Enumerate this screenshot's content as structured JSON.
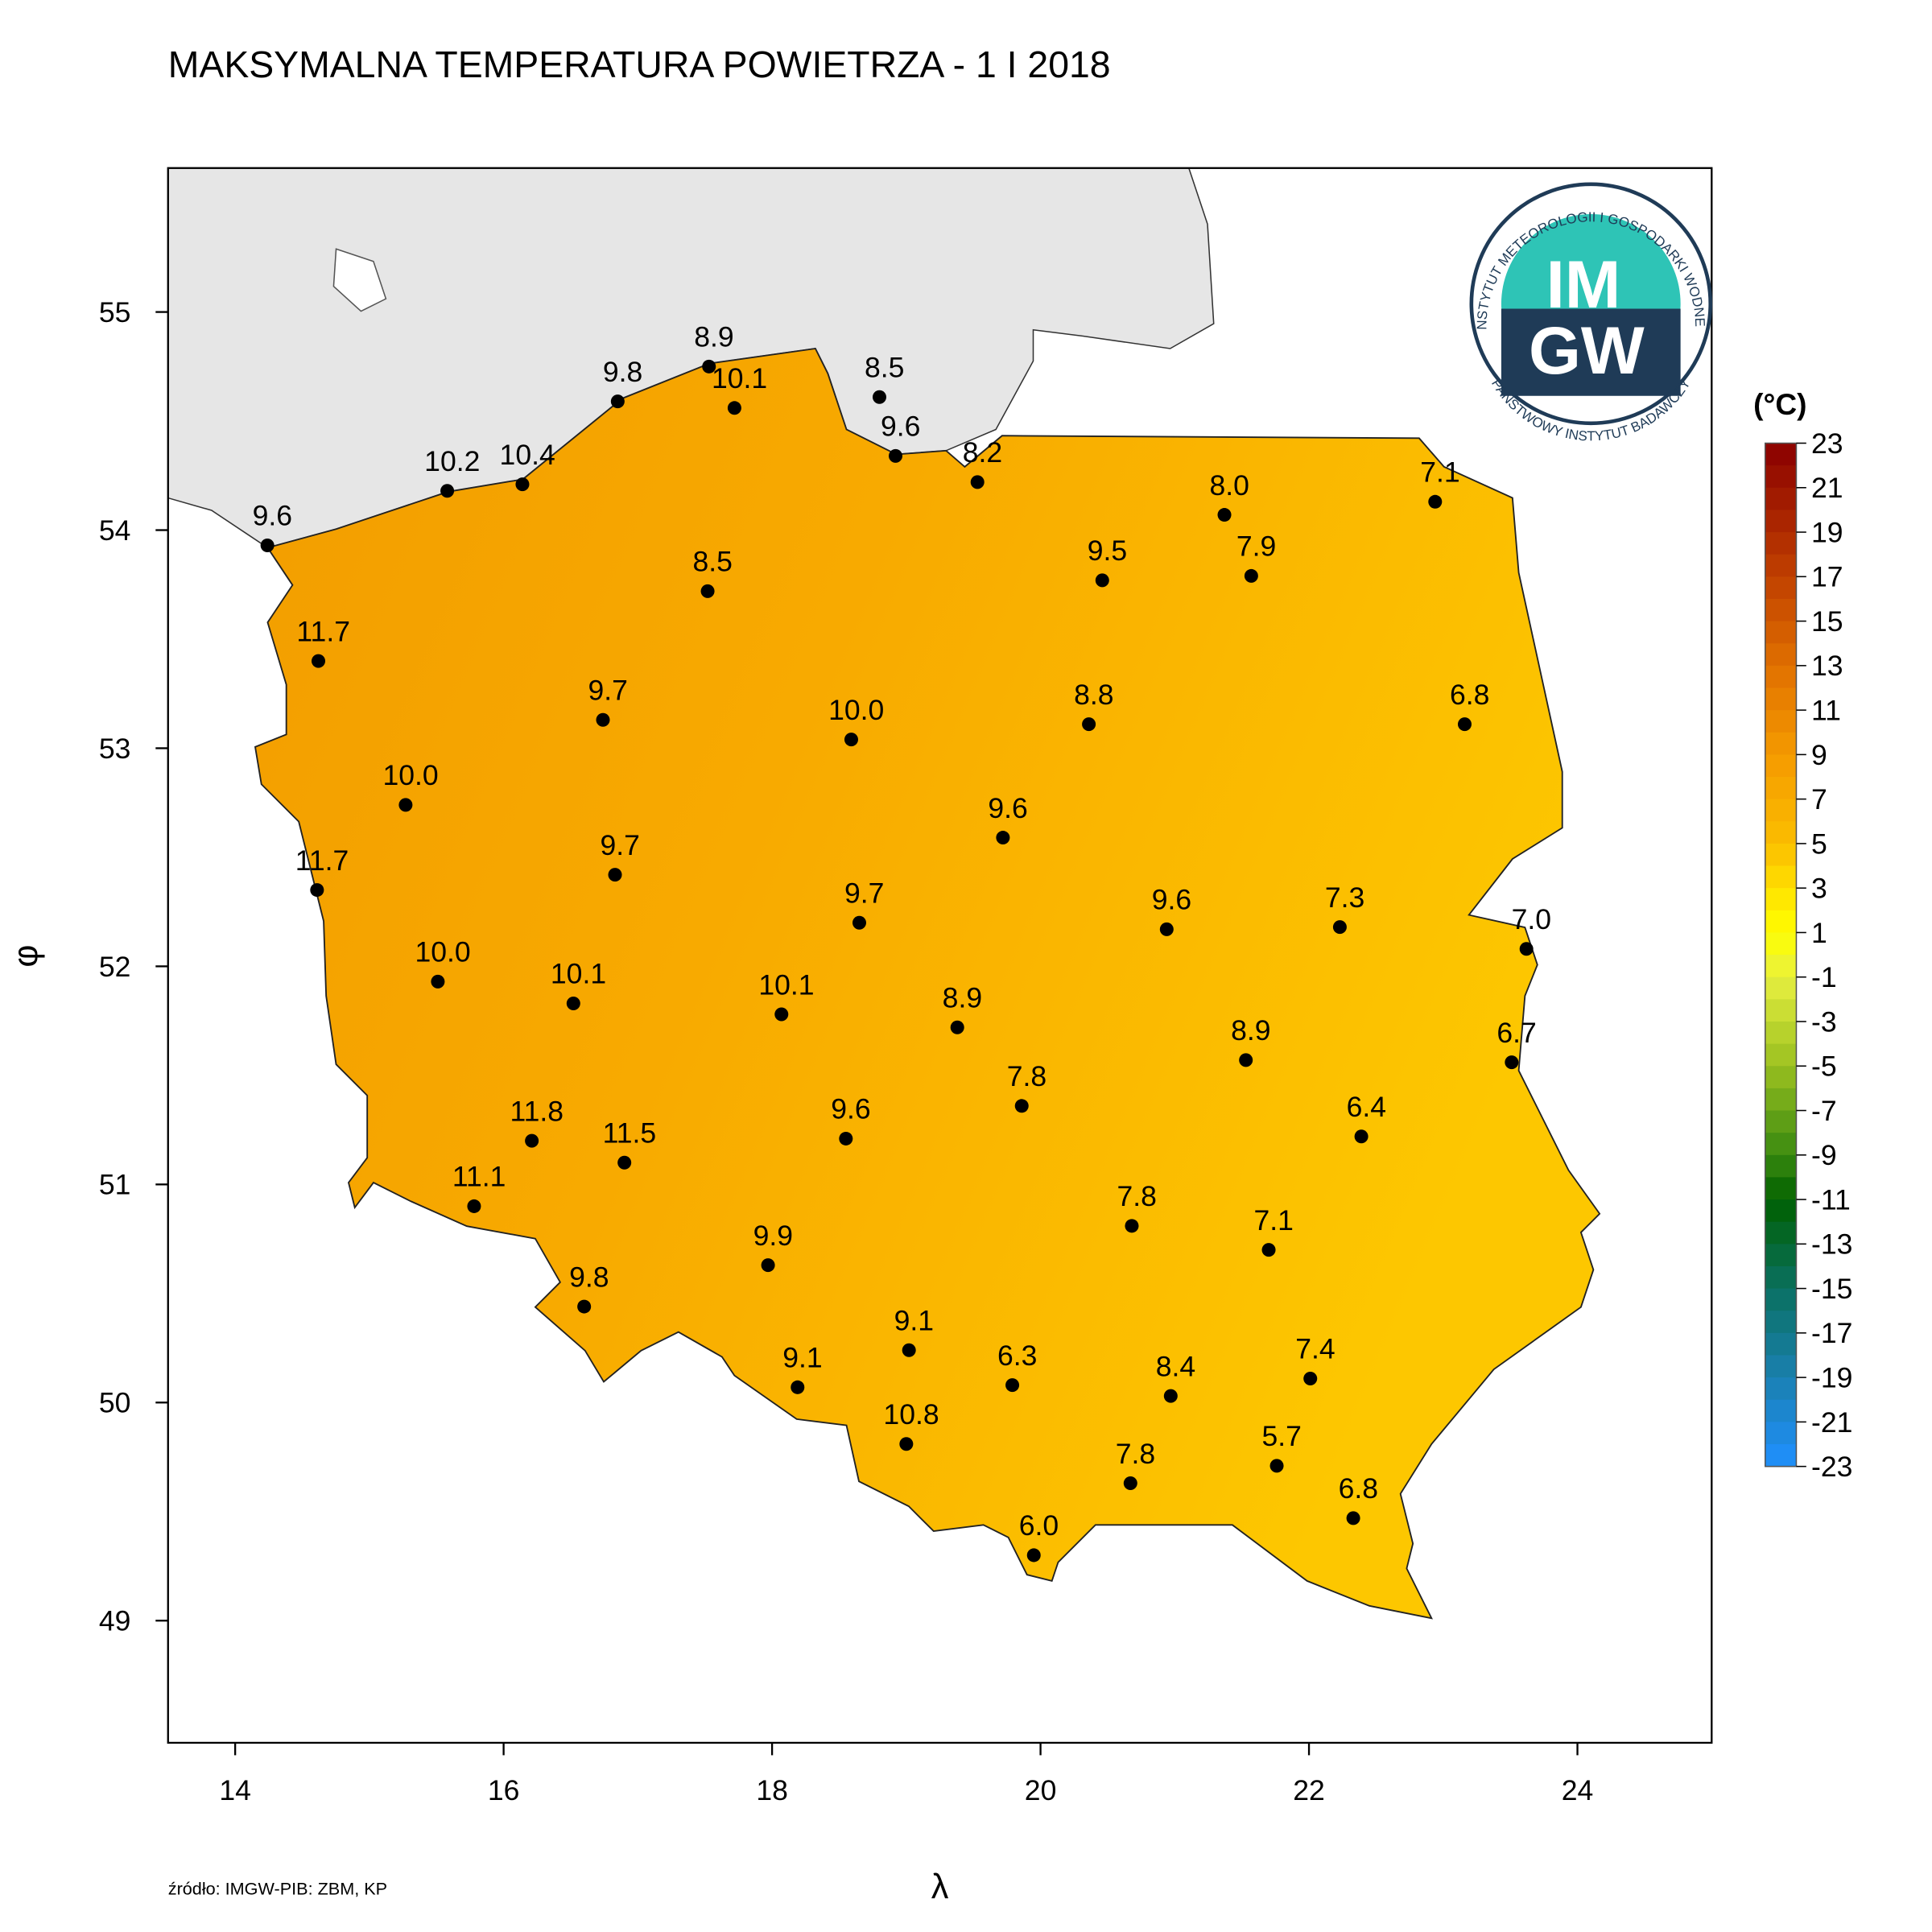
{
  "chart_data": {
    "type": "station-map",
    "title": "MAKSYMALNA TEMPERATURA POWIETRZA - 1 I 2018",
    "x_label": "λ",
    "y_label": "φ",
    "source": "źródło: IMGW-PIB: ZBM, KP",
    "logo": {
      "top": "IM",
      "bottom": "GW",
      "ring_top": "INSTYTUT METEOROLOGII I GOSPODARKI WODNEJ",
      "ring_bottom": "PAŃSTWOWY INSTYTUT BADAWCZY"
    },
    "xlim": [
      13.5,
      25.0
    ],
    "ylim": [
      48.44,
      55.66
    ],
    "xticks": [
      14,
      16,
      18,
      20,
      22,
      24
    ],
    "yticks": [
      49,
      50,
      51,
      52,
      53,
      54,
      55
    ],
    "stations": [
      {
        "lon": 14.24,
        "lat": 53.93,
        "value": 9.6
      },
      {
        "lon": 15.58,
        "lat": 54.18,
        "value": 10.2
      },
      {
        "lon": 16.14,
        "lat": 54.21,
        "value": 10.4
      },
      {
        "lon": 16.85,
        "lat": 54.59,
        "value": 9.8
      },
      {
        "lon": 17.53,
        "lat": 54.75,
        "value": 8.9
      },
      {
        "lon": 17.72,
        "lat": 54.56,
        "value": 10.1
      },
      {
        "lon": 18.8,
        "lat": 54.61,
        "value": 8.5
      },
      {
        "lon": 18.92,
        "lat": 54.34,
        "value": 9.6
      },
      {
        "lon": 19.53,
        "lat": 54.22,
        "value": 8.2
      },
      {
        "lon": 21.37,
        "lat": 54.07,
        "value": 8,
        "label": "8.0"
      },
      {
        "lon": 22.94,
        "lat": 54.13,
        "value": 7.1
      },
      {
        "lon": 17.52,
        "lat": 53.72,
        "value": 8.5
      },
      {
        "lon": 20.46,
        "lat": 53.77,
        "value": 9.5
      },
      {
        "lon": 21.57,
        "lat": 53.79,
        "value": 7.9
      },
      {
        "lon": 14.62,
        "lat": 53.4,
        "value": 11.7
      },
      {
        "lon": 16.74,
        "lat": 53.13,
        "value": 9.7
      },
      {
        "lon": 18.59,
        "lat": 53.04,
        "value": 10,
        "label": "10.0"
      },
      {
        "lon": 20.36,
        "lat": 53.11,
        "value": 8.8
      },
      {
        "lon": 23.16,
        "lat": 53.11,
        "value": 6.8
      },
      {
        "lon": 15.27,
        "lat": 52.74,
        "value": 10,
        "label": "10.0"
      },
      {
        "lon": 19.72,
        "lat": 52.59,
        "value": 9.6
      },
      {
        "lon": 16.83,
        "lat": 52.42,
        "value": 9.7
      },
      {
        "lon": 14.61,
        "lat": 52.35,
        "value": 11.7
      },
      {
        "lon": 18.65,
        "lat": 52.2,
        "value": 9.7
      },
      {
        "lon": 20.94,
        "lat": 52.17,
        "value": 9.6
      },
      {
        "lon": 22.23,
        "lat": 52.18,
        "value": 7.3
      },
      {
        "lon": 23.62,
        "lat": 52.08,
        "value": 7,
        "label": "7.0"
      },
      {
        "lon": 15.51,
        "lat": 51.93,
        "value": 10,
        "label": "10.0"
      },
      {
        "lon": 16.52,
        "lat": 51.83,
        "value": 10.1
      },
      {
        "lon": 18.07,
        "lat": 51.78,
        "value": 10.1
      },
      {
        "lon": 19.38,
        "lat": 51.72,
        "value": 8.9
      },
      {
        "lon": 21.53,
        "lat": 51.57,
        "value": 8.9
      },
      {
        "lon": 23.51,
        "lat": 51.56,
        "value": 6.7
      },
      {
        "lon": 19.86,
        "lat": 51.36,
        "value": 7.8
      },
      {
        "lon": 18.55,
        "lat": 51.21,
        "value": 9.6
      },
      {
        "lon": 22.39,
        "lat": 51.22,
        "value": 6.4
      },
      {
        "lon": 16.21,
        "lat": 51.2,
        "value": 11.8
      },
      {
        "lon": 16.9,
        "lat": 51.1,
        "value": 11.5
      },
      {
        "lon": 15.78,
        "lat": 50.9,
        "value": 11.1
      },
      {
        "lon": 20.68,
        "lat": 50.81,
        "value": 7.8
      },
      {
        "lon": 21.7,
        "lat": 50.7,
        "value": 7.1
      },
      {
        "lon": 17.97,
        "lat": 50.63,
        "value": 9.9
      },
      {
        "lon": 16.6,
        "lat": 50.44,
        "value": 9.8
      },
      {
        "lon": 19.02,
        "lat": 50.24,
        "value": 9.1
      },
      {
        "lon": 18.19,
        "lat": 50.07,
        "value": 9.1
      },
      {
        "lon": 19.79,
        "lat": 50.08,
        "value": 6.3
      },
      {
        "lon": 22.01,
        "lat": 50.11,
        "value": 7.4
      },
      {
        "lon": 20.97,
        "lat": 50.03,
        "value": 8.4
      },
      {
        "lon": 19.0,
        "lat": 49.81,
        "value": 10.8
      },
      {
        "lon": 20.67,
        "lat": 49.63,
        "value": 7.8
      },
      {
        "lon": 21.76,
        "lat": 49.71,
        "value": 5.7
      },
      {
        "lon": 22.33,
        "lat": 49.47,
        "value": 6.8
      },
      {
        "lon": 19.95,
        "lat": 49.3,
        "value": 6,
        "label": "6.0"
      }
    ],
    "colorbar": {
      "unit": "(°C)",
      "lim": [
        -23,
        23
      ],
      "ticks": [
        23,
        21,
        19,
        17,
        15,
        13,
        11,
        9,
        7,
        5,
        3,
        1,
        -1,
        -3,
        -5,
        -7,
        -9,
        -11,
        -13,
        -15,
        -17,
        -19,
        -21,
        -23
      ],
      "stops": [
        {
          "value": 23,
          "color": "#8b0000"
        },
        {
          "value": 17,
          "color": "#c04000"
        },
        {
          "value": 13,
          "color": "#e07000"
        },
        {
          "value": 9,
          "color": "#f59a00"
        },
        {
          "value": 5,
          "color": "#fbbd00"
        },
        {
          "value": 3,
          "color": "#ffe000"
        },
        {
          "value": 1,
          "color": "#ffff00"
        },
        {
          "value": -1,
          "color": "#e8f040"
        },
        {
          "value": -5,
          "color": "#9ac020"
        },
        {
          "value": -9,
          "color": "#3a8a10"
        },
        {
          "value": -11,
          "color": "#006000"
        },
        {
          "value": -15,
          "color": "#0a7060"
        },
        {
          "value": -19,
          "color": "#1a80b0"
        },
        {
          "value": -23,
          "color": "#2090ff"
        }
      ]
    }
  }
}
